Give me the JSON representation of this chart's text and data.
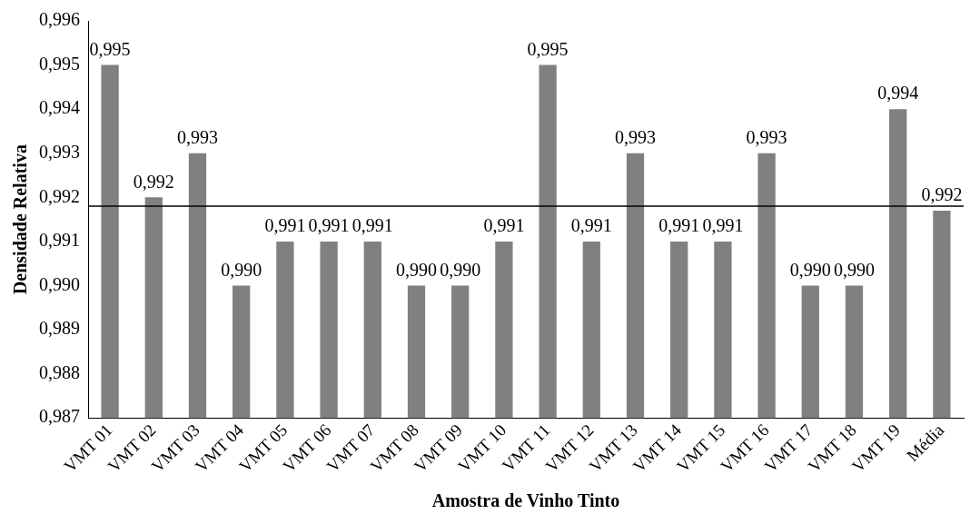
{
  "chart_data": {
    "type": "bar",
    "xlabel": "Amostra de Vinho Tinto",
    "ylabel": "Densidade Relativa",
    "categories": [
      "VMT 01",
      "VMT 02",
      "VMT 03",
      "VMT 04",
      "VMT 05",
      "VMT 06",
      "VMT 07",
      "VMT 08",
      "VMT 09",
      "VMT 10",
      "VMT 11",
      "VMT 12",
      "VMT 13",
      "VMT 14",
      "VMT 15",
      "VMT 16",
      "VMT 17",
      "VMT 18",
      "VMT 19",
      "Média"
    ],
    "values": [
      0.995,
      0.992,
      0.993,
      0.99,
      0.991,
      0.991,
      0.991,
      0.99,
      0.99,
      0.991,
      0.995,
      0.991,
      0.993,
      0.991,
      0.991,
      0.993,
      0.99,
      0.99,
      0.994,
      0.9917
    ],
    "value_labels": [
      "0,995",
      "0,992",
      "0,993",
      "0,990",
      "0,991",
      "0,991",
      "0,991",
      "0,990",
      "0,990",
      "0,991",
      "0,995",
      "0,991",
      "0,993",
      "0,991",
      "0,991",
      "0,993",
      "0,990",
      "0,990",
      "0,994",
      "0,992"
    ],
    "color": "#808080",
    "ylim": [
      0.987,
      0.996
    ],
    "yticks": [
      {
        "value": 0.987,
        "label": "0,987"
      },
      {
        "value": 0.988,
        "label": "0,988"
      },
      {
        "value": 0.989,
        "label": "0,989"
      },
      {
        "value": 0.99,
        "label": "0,990"
      },
      {
        "value": 0.991,
        "label": "0,991"
      },
      {
        "value": 0.992,
        "label": "0,992"
      },
      {
        "value": 0.993,
        "label": "0,993"
      },
      {
        "value": 0.994,
        "label": "0,994"
      },
      {
        "value": 0.995,
        "label": "0,995"
      },
      {
        "value": 0.996,
        "label": "0,996"
      }
    ],
    "ref_lines": [
      {
        "axis": "y",
        "value": 0.9918,
        "color": "#000000"
      }
    ],
    "grid": false,
    "legend": false
  }
}
